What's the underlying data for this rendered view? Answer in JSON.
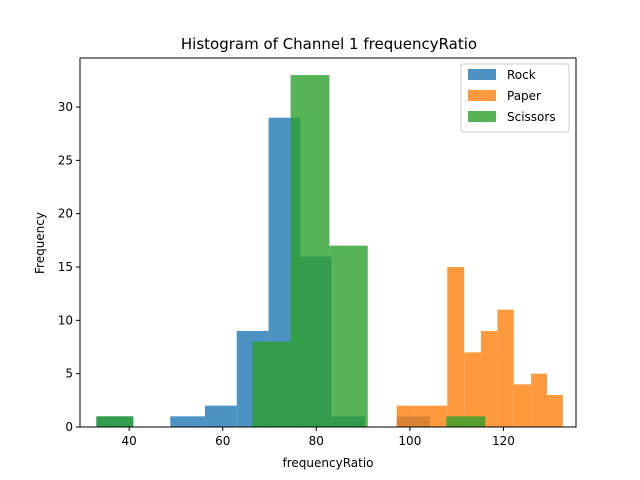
{
  "chart_data": {
    "type": "bar",
    "title": "Histogram of Channel 1 frequencyRatio",
    "xlabel": "frequencyRatio",
    "ylabel": "Frequency",
    "xlim": [
      29.5,
      135.5
    ],
    "ylim": [
      0,
      34.6
    ],
    "xticks": [
      40,
      60,
      80,
      100,
      120
    ],
    "yticks": [
      0,
      5,
      10,
      15,
      20,
      25,
      30
    ],
    "legend_position": "top-right",
    "grid": false,
    "series": [
      {
        "name": "Rock",
        "color": "#1f77b4",
        "bins": [
          {
            "x0": 33.0,
            "x1": 40.9,
            "value": 1
          },
          {
            "x0": 48.8,
            "x1": 56.2,
            "value": 1
          },
          {
            "x0": 56.2,
            "x1": 63.0,
            "value": 2
          },
          {
            "x0": 63.0,
            "x1": 69.8,
            "value": 9
          },
          {
            "x0": 69.8,
            "x1": 76.6,
            "value": 29
          },
          {
            "x0": 76.6,
            "x1": 83.2,
            "value": 16
          },
          {
            "x0": 83.2,
            "x1": 90.4,
            "value": 1
          },
          {
            "x0": 97.2,
            "x1": 104.3,
            "value": 1
          }
        ]
      },
      {
        "name": "Paper",
        "color": "#ff7f0e",
        "bins": [
          {
            "x0": 97.2,
            "x1": 100.7,
            "value": 2
          },
          {
            "x0": 100.7,
            "x1": 104.3,
            "value": 2
          },
          {
            "x0": 104.3,
            "x1": 108.0,
            "value": 2
          },
          {
            "x0": 108.0,
            "x1": 111.6,
            "value": 15
          },
          {
            "x0": 111.6,
            "x1": 115.2,
            "value": 7
          },
          {
            "x0": 115.2,
            "x1": 118.7,
            "value": 9
          },
          {
            "x0": 118.7,
            "x1": 122.2,
            "value": 11
          },
          {
            "x0": 122.2,
            "x1": 125.9,
            "value": 4
          },
          {
            "x0": 125.9,
            "x1": 129.3,
            "value": 5
          },
          {
            "x0": 129.3,
            "x1": 132.7,
            "value": 3
          }
        ]
      },
      {
        "name": "Scissors",
        "color": "#2ca02c",
        "bins": [
          {
            "x0": 33.0,
            "x1": 40.9,
            "value": 1
          },
          {
            "x0": 66.3,
            "x1": 74.5,
            "value": 8
          },
          {
            "x0": 74.5,
            "x1": 82.8,
            "value": 33
          },
          {
            "x0": 82.8,
            "x1": 91.0,
            "value": 17
          },
          {
            "x0": 107.8,
            "x1": 116.1,
            "value": 1
          }
        ]
      }
    ]
  }
}
